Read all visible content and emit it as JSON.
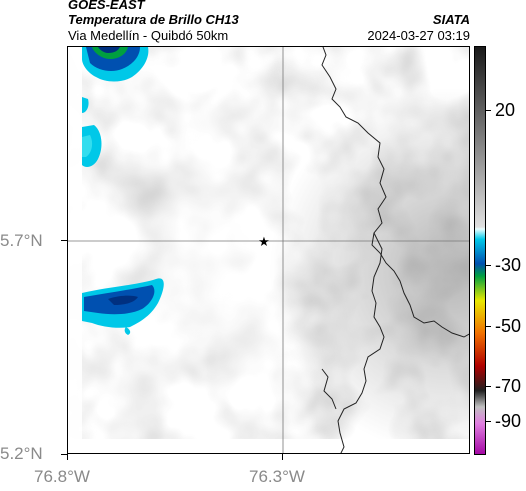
{
  "header": {
    "satellite": "GOES-EAST",
    "product": "Temperatura de Brillo CH13",
    "subtitle": "Via Medellín - Quibdó 50km",
    "org": "SIATA",
    "datetime": "2024-03-27 03:19"
  },
  "axes": {
    "y_labels": [
      "5.7°N",
      "5.2°N"
    ],
    "x_labels": [
      "76.8°W",
      "76.3°W"
    ]
  },
  "colorbar": {
    "labels": [
      "20",
      "-30",
      "-50",
      "-70",
      "-90"
    ],
    "colors": {
      "dark": "#1a1a1a",
      "light_gray": "#e0e0e0",
      "cyan": "#00c8e8",
      "blue": "#0050b0",
      "green": "#00a040",
      "yellow": "#e8e800",
      "orange": "#f07000",
      "red": "#b00000",
      "magenta": "#c040c0"
    }
  },
  "map": {
    "marker_icon": "star-icon",
    "background_color": "#d6d6d6"
  }
}
